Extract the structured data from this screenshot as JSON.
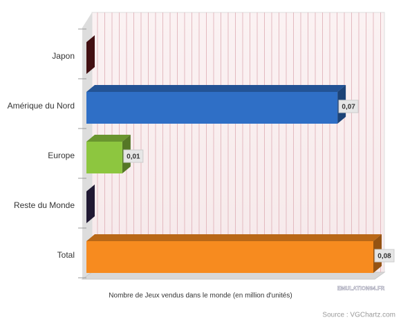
{
  "chart_data": {
    "type": "bar",
    "orientation": "horizontal",
    "categories": [
      "Japon",
      "Amérique du Nord",
      "Europe",
      "Reste du Monde",
      "Total"
    ],
    "values": [
      0,
      0.07,
      0.01,
      0,
      0.08
    ],
    "value_labels": [
      null,
      "0,07",
      "0,01",
      null,
      "0,08"
    ],
    "colors": [
      "#6e1a1e",
      "#2f6fc6",
      "#8dc63f",
      "#352a55",
      "#f78b1f"
    ],
    "xlim": [
      0,
      0.08
    ],
    "x_label": "Nombre de Jeux vendus dans le monde (en million d'unités)",
    "watermark": "EMULATION64.FR",
    "source": "Source : VGChartz.com"
  }
}
